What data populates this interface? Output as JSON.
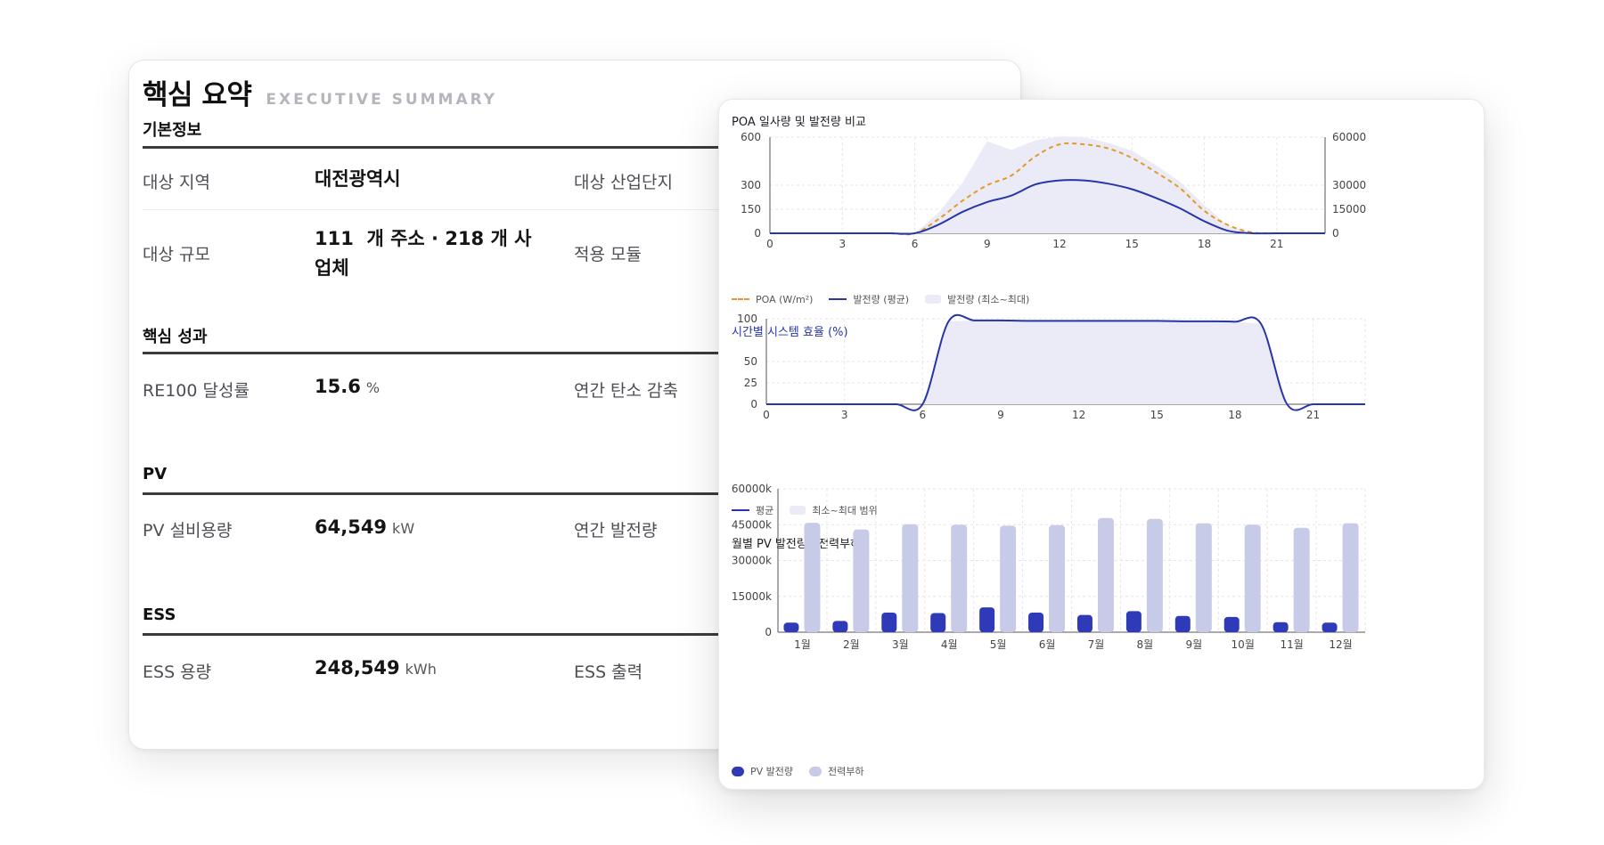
{
  "summary": {
    "title": "핵심 요약",
    "subtitle": "EXECUTIVE SUMMARY",
    "sections": {
      "basic": {
        "heading": "기본정보",
        "region_label": "대상 지역",
        "region_value": "대전광역시",
        "complex_label": "대상 산업단지",
        "scale_label": "대상 규모",
        "scale_value_line1": "111  개 주소 · 218 개 사",
        "scale_value_line2": "업체",
        "module_label": "적용 모듈"
      },
      "results": {
        "heading": "핵심 성과",
        "re100_label": "RE100 달성률",
        "re100_value": "15.6",
        "re100_unit": "%",
        "carbon_label": "연간 탄소 감축"
      },
      "pv": {
        "heading": "PV",
        "capacity_label": "PV 설비용량",
        "capacity_value": "64,549",
        "capacity_unit": "kW",
        "annual_label": "연간 발전량"
      },
      "ess": {
        "heading": "ESS",
        "capacity_label": "ESS 용량",
        "capacity_value": "248,549",
        "capacity_unit": "kWh",
        "output_label": "ESS 출력"
      }
    }
  },
  "charts": {
    "poa": {
      "title": "POA 일사량 및 발전량 비교",
      "legend": {
        "poa": "POA (W/m²)",
        "avg": "발전량 (평균)",
        "range": "발전량 (최소~최대)"
      }
    },
    "efficiency": {
      "title": "시간별 시스템 효율 (%)",
      "legend": {
        "avg": "평균",
        "range": "최소~최대 범위"
      }
    },
    "monthly": {
      "title": "월별 PV 발전량 · 전력부하",
      "legend": {
        "pv": "PV 발전량",
        "load": "전력부하"
      }
    }
  },
  "colors": {
    "navy": "#2e3ab8",
    "lavender": "#c7cbe8",
    "orange": "#e29a2b",
    "band": "#ebebf7"
  },
  "chart_data": [
    {
      "type": "line",
      "title": "POA 일사량 및 발전량 비교",
      "x": [
        0,
        1,
        2,
        3,
        4,
        5,
        6,
        7,
        8,
        9,
        10,
        11,
        12,
        13,
        14,
        15,
        16,
        17,
        18,
        19,
        20,
        21,
        22,
        23
      ],
      "xticks": [
        0,
        3,
        6,
        9,
        12,
        15,
        18,
        21
      ],
      "xlim": [
        0,
        23
      ],
      "yticks_left": [
        0,
        150,
        300,
        600
      ],
      "ylim_left": [
        0,
        600
      ],
      "yticks_right": [
        0,
        15000,
        30000,
        60000
      ],
      "ylim_right": [
        0,
        60000
      ],
      "series": [
        {
          "name": "POA (W/m²)",
          "axis": "left",
          "values": [
            0,
            0,
            0,
            0,
            0,
            0,
            0,
            90,
            205,
            300,
            360,
            480,
            555,
            555,
            530,
            470,
            380,
            280,
            140,
            50,
            5,
            0,
            0,
            0
          ]
        },
        {
          "name": "발전량 (평균)",
          "axis": "right",
          "values": [
            0,
            0,
            0,
            0,
            0,
            0,
            0,
            5500,
            13500,
            19500,
            23500,
            30500,
            33000,
            33000,
            31000,
            27500,
            22000,
            15500,
            7500,
            1500,
            0,
            0,
            0,
            0
          ]
        },
        {
          "name": "발전량 (최소~최대)",
          "type": "area",
          "axis": "right",
          "values": [
            0,
            0,
            0,
            0,
            0,
            0,
            0,
            13000,
            32000,
            57500,
            52000,
            58000,
            60500,
            60000,
            56500,
            51500,
            42500,
            32000,
            17500,
            4500,
            0,
            0,
            0,
            0
          ]
        }
      ]
    },
    {
      "type": "line",
      "title": "시간별 시스템 효율 (%)",
      "x": [
        0,
        1,
        2,
        3,
        4,
        5,
        6,
        7,
        8,
        9,
        10,
        11,
        12,
        13,
        14,
        15,
        16,
        17,
        18,
        19,
        20,
        21,
        22,
        23
      ],
      "xticks": [
        0,
        3,
        6,
        9,
        12,
        15,
        18,
        21
      ],
      "xlim": [
        0,
        23
      ],
      "yticks": [
        0,
        25,
        50,
        100
      ],
      "ylim": [
        0,
        100
      ],
      "series": [
        {
          "name": "평균",
          "values": [
            0,
            0,
            0,
            0,
            0,
            0,
            0,
            97,
            98,
            98,
            97.5,
            97.5,
            97.5,
            97.5,
            97.5,
            97.5,
            97,
            97,
            96.5,
            94,
            0,
            0,
            0,
            0
          ]
        },
        {
          "name": "최소~최대 범위",
          "type": "area",
          "values": [
            0,
            0,
            0,
            0,
            0,
            0,
            0,
            97,
            98,
            98,
            97.5,
            97.5,
            97.5,
            97.5,
            97.5,
            97.5,
            97,
            97,
            96.5,
            94,
            0,
            0,
            0,
            0
          ]
        }
      ]
    },
    {
      "type": "bar",
      "title": "월별 PV 발전량 · 전력부하",
      "categories": [
        "1월",
        "2월",
        "3월",
        "4월",
        "5월",
        "6월",
        "7월",
        "8월",
        "9월",
        "10월",
        "11월",
        "12월"
      ],
      "ylim": [
        0,
        60000
      ],
      "yticks": [
        0,
        15000,
        30000,
        45000,
        60000
      ],
      "ytick_labels": [
        "0",
        "15000k",
        "30000k",
        "45000k",
        "60000k"
      ],
      "series": [
        {
          "name": "PV 발전량",
          "values": [
            4000,
            4700,
            8200,
            8000,
            10400,
            8200,
            7200,
            8800,
            6800,
            6400,
            4200,
            4000
          ]
        },
        {
          "name": "전력부하",
          "values": [
            45800,
            43000,
            45200,
            45000,
            44600,
            44800,
            47800,
            47400,
            45600,
            45000,
            43700,
            45600
          ]
        }
      ]
    }
  ]
}
